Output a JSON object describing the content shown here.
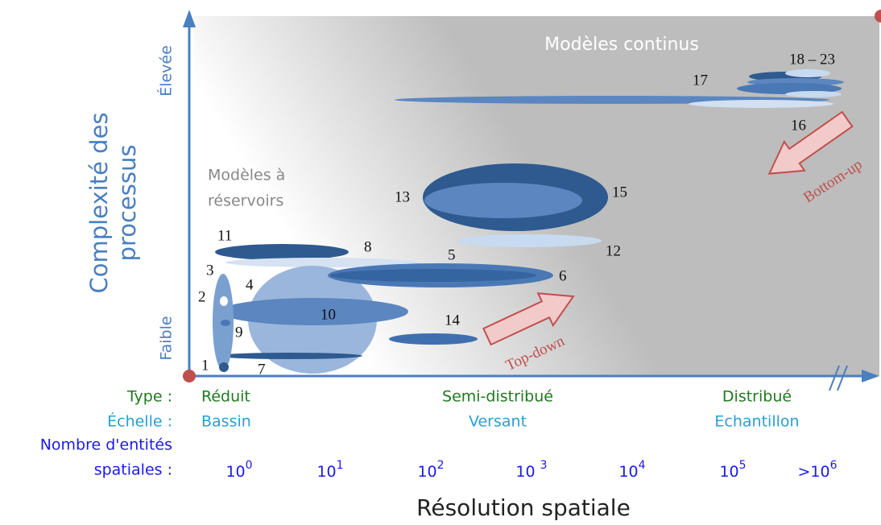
{
  "regions": {
    "continuous": "Modèles continus",
    "reservoir": [
      "Modèles à",
      "réservoirs"
    ]
  },
  "model_labels": [
    "1",
    "2",
    "3",
    "4",
    "5",
    "6",
    "7",
    "8",
    "9",
    "10",
    "11",
    "12",
    "13",
    "14",
    "15",
    "16",
    "17",
    "18 – 23"
  ],
  "arrows": {
    "top_down": "Top-down",
    "bottom_up": "Bottom-up"
  },
  "y_axis": {
    "title": [
      "Complexité des",
      "processus"
    ],
    "high": "Élevée",
    "low": "Faible"
  },
  "x_axis": {
    "title": "Résolution spatiale",
    "rows": [
      {
        "label": "Type :",
        "values": [
          "Réduit",
          "Semi-distribué",
          "Distribué"
        ]
      },
      {
        "label": "Échelle :",
        "values": [
          "Bassin",
          "Versant",
          "Echantillon"
        ]
      }
    ],
    "count_label": [
      "Nombre d'entités",
      "spatiales :"
    ],
    "counts": [
      {
        "base": "10",
        "exp": "0"
      },
      {
        "base": "10",
        "exp": "1"
      },
      {
        "base": "10",
        "exp": "2"
      },
      {
        "base": "10 ",
        "exp": "3"
      },
      {
        "base": "10",
        "exp": "4"
      },
      {
        "base": "10",
        "exp": "5"
      },
      {
        "base": ">10",
        "exp": "6"
      }
    ]
  }
}
